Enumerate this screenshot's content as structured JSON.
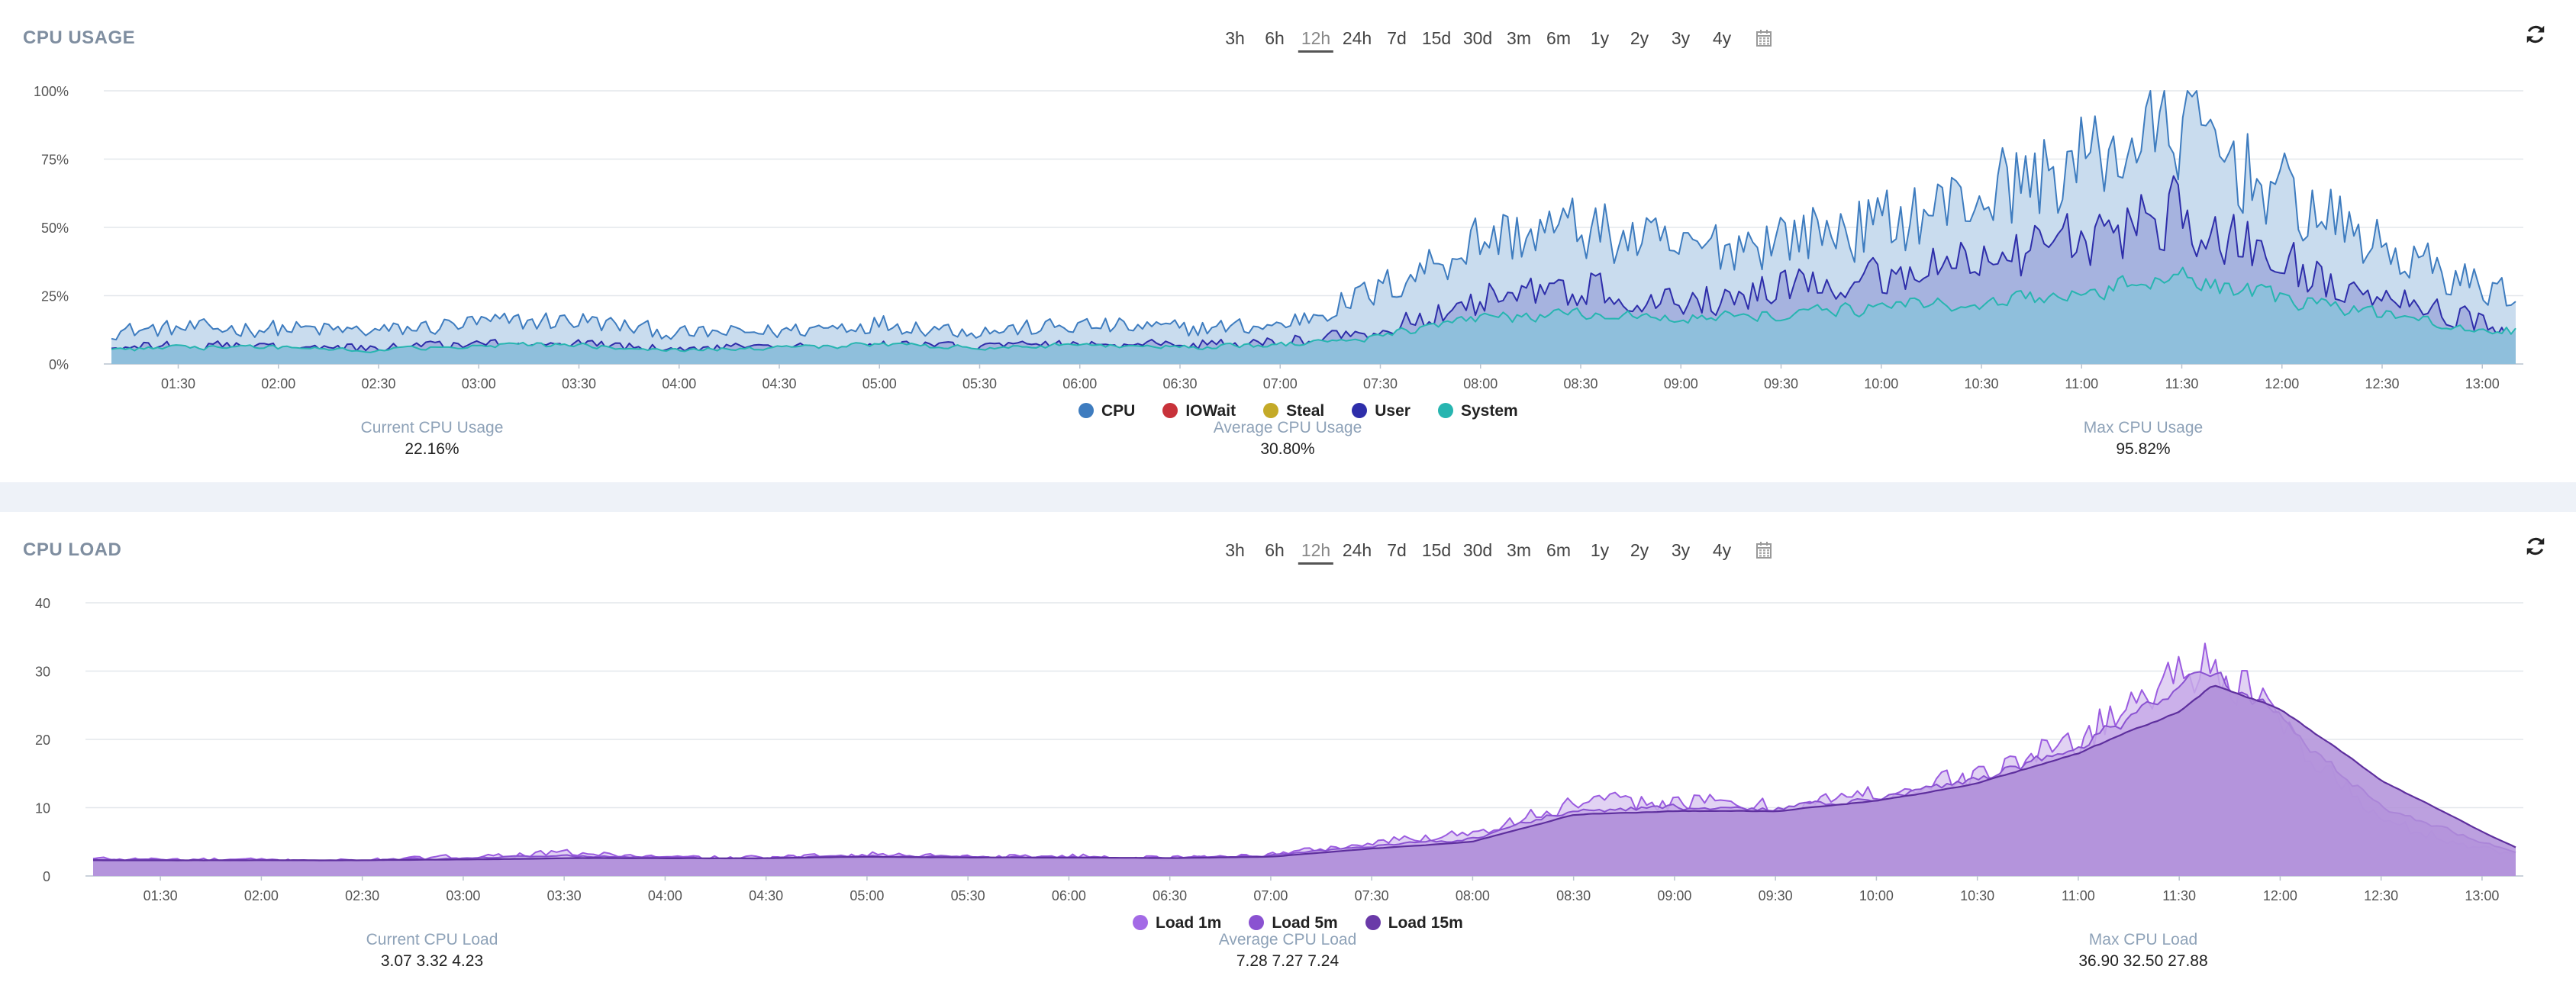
{
  "ranges": [
    "3h",
    "6h",
    "12h",
    "24h",
    "7d",
    "15d",
    "30d",
    "3m",
    "6m",
    "1y",
    "2y",
    "3y",
    "4y"
  ],
  "active_range": "12h",
  "time_ticks": [
    "01:30",
    "02:00",
    "02:30",
    "03:00",
    "03:30",
    "04:00",
    "04:30",
    "05:00",
    "05:30",
    "06:00",
    "06:30",
    "07:00",
    "07:30",
    "08:00",
    "08:30",
    "09:00",
    "09:30",
    "10:00",
    "10:30",
    "11:00",
    "11:30",
    "12:00",
    "12:30",
    "13:00"
  ],
  "usage": {
    "title": "CPU USAGE",
    "y_ticks": [
      "100%",
      "75%",
      "50%",
      "25%",
      "0%"
    ],
    "legend": [
      {
        "name": "CPU",
        "color": "#3e7cbf"
      },
      {
        "name": "IOWait",
        "color": "#c8323a"
      },
      {
        "name": "Steal",
        "color": "#c4aa28"
      },
      {
        "name": "User",
        "color": "#2e2eaa"
      },
      {
        "name": "System",
        "color": "#27b5b0"
      }
    ],
    "stats": [
      {
        "label": "Current CPU Usage",
        "value": "22.16%"
      },
      {
        "label": "Average CPU Usage",
        "value": "30.80%"
      },
      {
        "label": "Max CPU Usage",
        "value": "95.82%"
      }
    ]
  },
  "load": {
    "title": "CPU LOAD",
    "y_ticks": [
      "40",
      "30",
      "20",
      "10",
      "0"
    ],
    "legend": [
      {
        "name": "Load 1m",
        "color": "#a36ae6"
      },
      {
        "name": "Load 5m",
        "color": "#8a52d1"
      },
      {
        "name": "Load 15m",
        "color": "#6a3aa8"
      }
    ],
    "stats": [
      {
        "label": "Current CPU Load",
        "value": "3.07 3.32 4.23"
      },
      {
        "label": "Average CPU Load",
        "value": "7.28 7.27 7.24"
      },
      {
        "label": "Max CPU Load",
        "value": "36.90 32.50 27.88"
      }
    ]
  },
  "chart_data": [
    {
      "type": "area",
      "title": "CPU USAGE",
      "x": [
        "01:10",
        "01:30",
        "02:00",
        "02:30",
        "03:00",
        "03:30",
        "04:00",
        "04:30",
        "05:00",
        "05:30",
        "06:00",
        "06:30",
        "07:00",
        "07:30",
        "08:00",
        "08:30",
        "09:00",
        "09:30",
        "10:00",
        "10:30",
        "11:00",
        "11:30",
        "12:00",
        "12:30",
        "13:00",
        "13:10"
      ],
      "ylim": [
        0,
        100
      ],
      "yunit": "%",
      "series": [
        {
          "name": "CPU",
          "values": [
            12,
            13,
            13,
            12,
            15,
            16,
            11,
            12,
            15,
            12,
            14,
            13,
            14,
            27,
            46,
            50,
            41,
            47,
            51,
            62,
            74,
            88,
            62,
            42,
            28,
            26
          ]
        },
        {
          "name": "User",
          "values": [
            6,
            7,
            6,
            6,
            7,
            7,
            6,
            6,
            7,
            6,
            7,
            7,
            8,
            12,
            24,
            28,
            23,
            27,
            31,
            37,
            45,
            55,
            37,
            24,
            15,
            13
          ]
        },
        {
          "name": "System",
          "values": [
            5,
            6,
            6,
            5,
            7,
            7,
            5,
            6,
            7,
            6,
            7,
            6,
            7,
            10,
            17,
            18,
            17,
            18,
            21,
            23,
            26,
            32,
            24,
            18,
            13,
            12
          ]
        },
        {
          "name": "IOWait",
          "values": [
            0,
            0,
            0,
            0,
            0,
            0,
            0,
            0,
            0,
            0,
            0,
            0,
            0,
            0,
            0,
            0,
            0,
            0,
            0,
            0,
            0,
            0,
            0,
            0,
            0,
            0
          ]
        },
        {
          "name": "Steal",
          "values": [
            0,
            0,
            0,
            0,
            0,
            0,
            0,
            0,
            0,
            0,
            0,
            0,
            0,
            0,
            0,
            0,
            0,
            0,
            0,
            0,
            0,
            0,
            0,
            0,
            0,
            0
          ]
        }
      ]
    },
    {
      "type": "area",
      "title": "CPU LOAD",
      "x": [
        "01:10",
        "01:30",
        "02:00",
        "02:30",
        "03:00",
        "03:30",
        "04:00",
        "04:30",
        "05:00",
        "05:30",
        "06:00",
        "06:30",
        "07:00",
        "07:30",
        "08:00",
        "08:30",
        "09:00",
        "09:30",
        "10:00",
        "10:30",
        "11:00",
        "11:30",
        "11:40",
        "12:00",
        "12:30",
        "13:00",
        "13:10"
      ],
      "ylim": [
        0,
        40
      ],
      "series": [
        {
          "name": "Load 1m",
          "values": [
            2.5,
            2.4,
            2.3,
            2.2,
            2.8,
            3.4,
            2.7,
            2.6,
            3.2,
            2.8,
            2.9,
            2.6,
            3.1,
            4.8,
            6.5,
            10.5,
            11,
            10,
            12,
            14.5,
            20,
            30,
            32,
            22,
            8,
            4,
            3.1
          ]
        },
        {
          "name": "Load 5m",
          "values": [
            2.4,
            2.4,
            2.3,
            2.3,
            2.6,
            3,
            2.7,
            2.6,
            3,
            2.8,
            2.8,
            2.6,
            3,
            4.4,
            5.5,
            9.8,
            10,
            9.8,
            11.5,
            14,
            19,
            27,
            30,
            23,
            10,
            5,
            3.3
          ]
        },
        {
          "name": "Load 15m",
          "values": [
            2.3,
            2.3,
            2.3,
            2.3,
            2.4,
            2.6,
            2.6,
            2.6,
            2.8,
            2.7,
            2.7,
            2.6,
            2.8,
            4,
            5,
            9,
            9.5,
            9.5,
            11,
            13.5,
            18,
            24,
            28,
            24.5,
            14,
            6.5,
            4.2
          ]
        }
      ]
    }
  ]
}
